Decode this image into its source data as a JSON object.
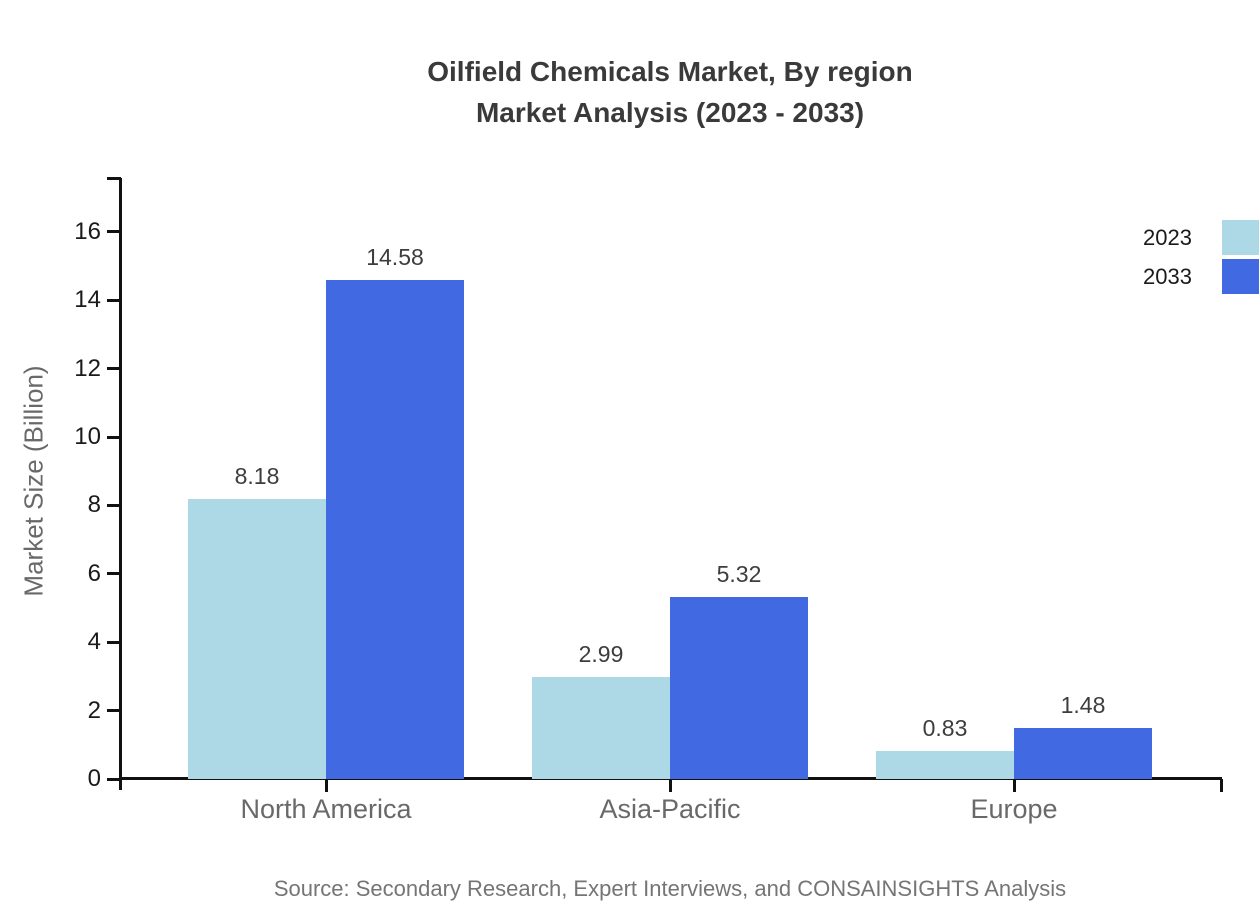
{
  "title": {
    "line1": "Oilfield Chemicals Market, By region",
    "line2": "Market Analysis (2023 - 2033)"
  },
  "source": "Source: Secondary Research, Expert Interviews, and CONSAINSIGHTS Analysis",
  "y_axis": {
    "label": "Market Size (Billion)",
    "ticks": [
      0,
      2,
      4,
      6,
      8,
      10,
      12,
      14,
      16
    ]
  },
  "legend": {
    "position": "top-right",
    "items": [
      {
        "label": "2023",
        "color": "#add8e6"
      },
      {
        "label": "2033",
        "color": "#4169e1"
      }
    ]
  },
  "colors": {
    "series_2023": "#add8e6",
    "series_2033": "#4169e1",
    "axis": "#111111",
    "title_text": "#3a3a3a",
    "muted_text": "#696969",
    "source_text": "#757575"
  },
  "chart_data": {
    "type": "bar",
    "title": "Oilfield Chemicals Market, By region — Market Analysis (2023 - 2033)",
    "categories": [
      "North America",
      "Asia-Pacific",
      "Europe"
    ],
    "series": [
      {
        "name": "2023",
        "color": "#add8e6",
        "values": [
          8.18,
          2.99,
          0.83
        ]
      },
      {
        "name": "2033",
        "color": "#4169e1",
        "values": [
          14.58,
          5.32,
          1.48
        ]
      }
    ],
    "xlabel": "",
    "ylabel": "Market Size (Billion)",
    "ylim": [
      0,
      17.5
    ],
    "ytick_step": 2,
    "grid": false,
    "legend_position": "top-right",
    "value_labels_shown": true
  }
}
